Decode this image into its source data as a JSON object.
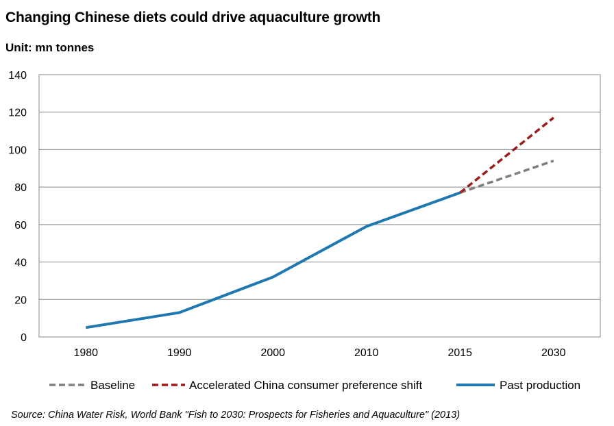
{
  "chart_data": {
    "type": "line",
    "title": "Changing Chinese diets could drive aquaculture growth",
    "subtitle": "Unit: mn tonnes",
    "categories": [
      "1980",
      "1990",
      "2000",
      "2010",
      "2015",
      "2030"
    ],
    "ylim": [
      0,
      140
    ],
    "yticks": [
      0,
      20,
      40,
      60,
      80,
      100,
      120,
      140
    ],
    "grid": true,
    "legend_position": "bottom",
    "series": [
      {
        "name": "Baseline",
        "style": "dashed",
        "color": "#7f7f7f",
        "values": [
          null,
          null,
          null,
          null,
          77,
          94
        ]
      },
      {
        "name": "Accelerated China consumer preference shift",
        "style": "dashed",
        "color": "#9b1c1c",
        "values": [
          null,
          null,
          null,
          null,
          77,
          117
        ]
      },
      {
        "name": "Past production",
        "style": "solid",
        "color": "#1f78b0",
        "values": [
          5,
          13,
          32,
          59,
          77,
          null
        ]
      }
    ],
    "source": "Source: China Water Risk, World Bank \"Fish to 2030:  Prospects for Fisheries and Aquaculture\" (2013)"
  }
}
